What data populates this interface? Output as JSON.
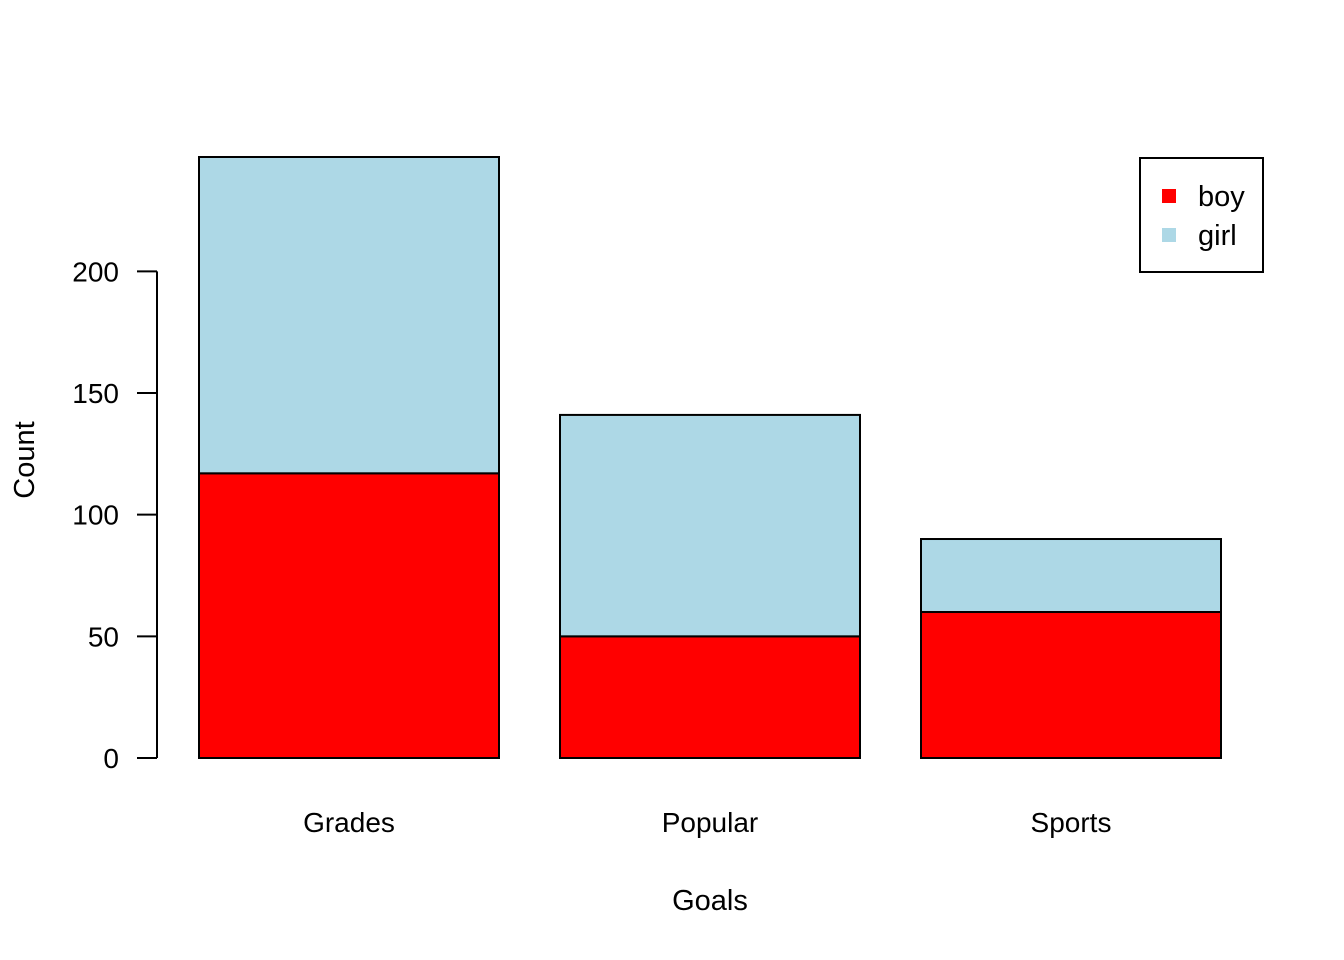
{
  "chart_data": {
    "type": "bar",
    "stacked": true,
    "categories": [
      "Grades",
      "Popular",
      "Sports"
    ],
    "series": [
      {
        "name": "boy",
        "values": [
          117,
          50,
          60
        ],
        "color": "#ff0000"
      },
      {
        "name": "girl",
        "values": [
          130,
          91,
          30
        ],
        "color": "#add8e6"
      }
    ],
    "title": "",
    "xlabel": "Goals",
    "ylabel": "Count",
    "ylim": [
      0,
      247
    ],
    "yticks": [
      0,
      50,
      100,
      150,
      200
    ],
    "grid": false,
    "legend_position": "top-right"
  }
}
